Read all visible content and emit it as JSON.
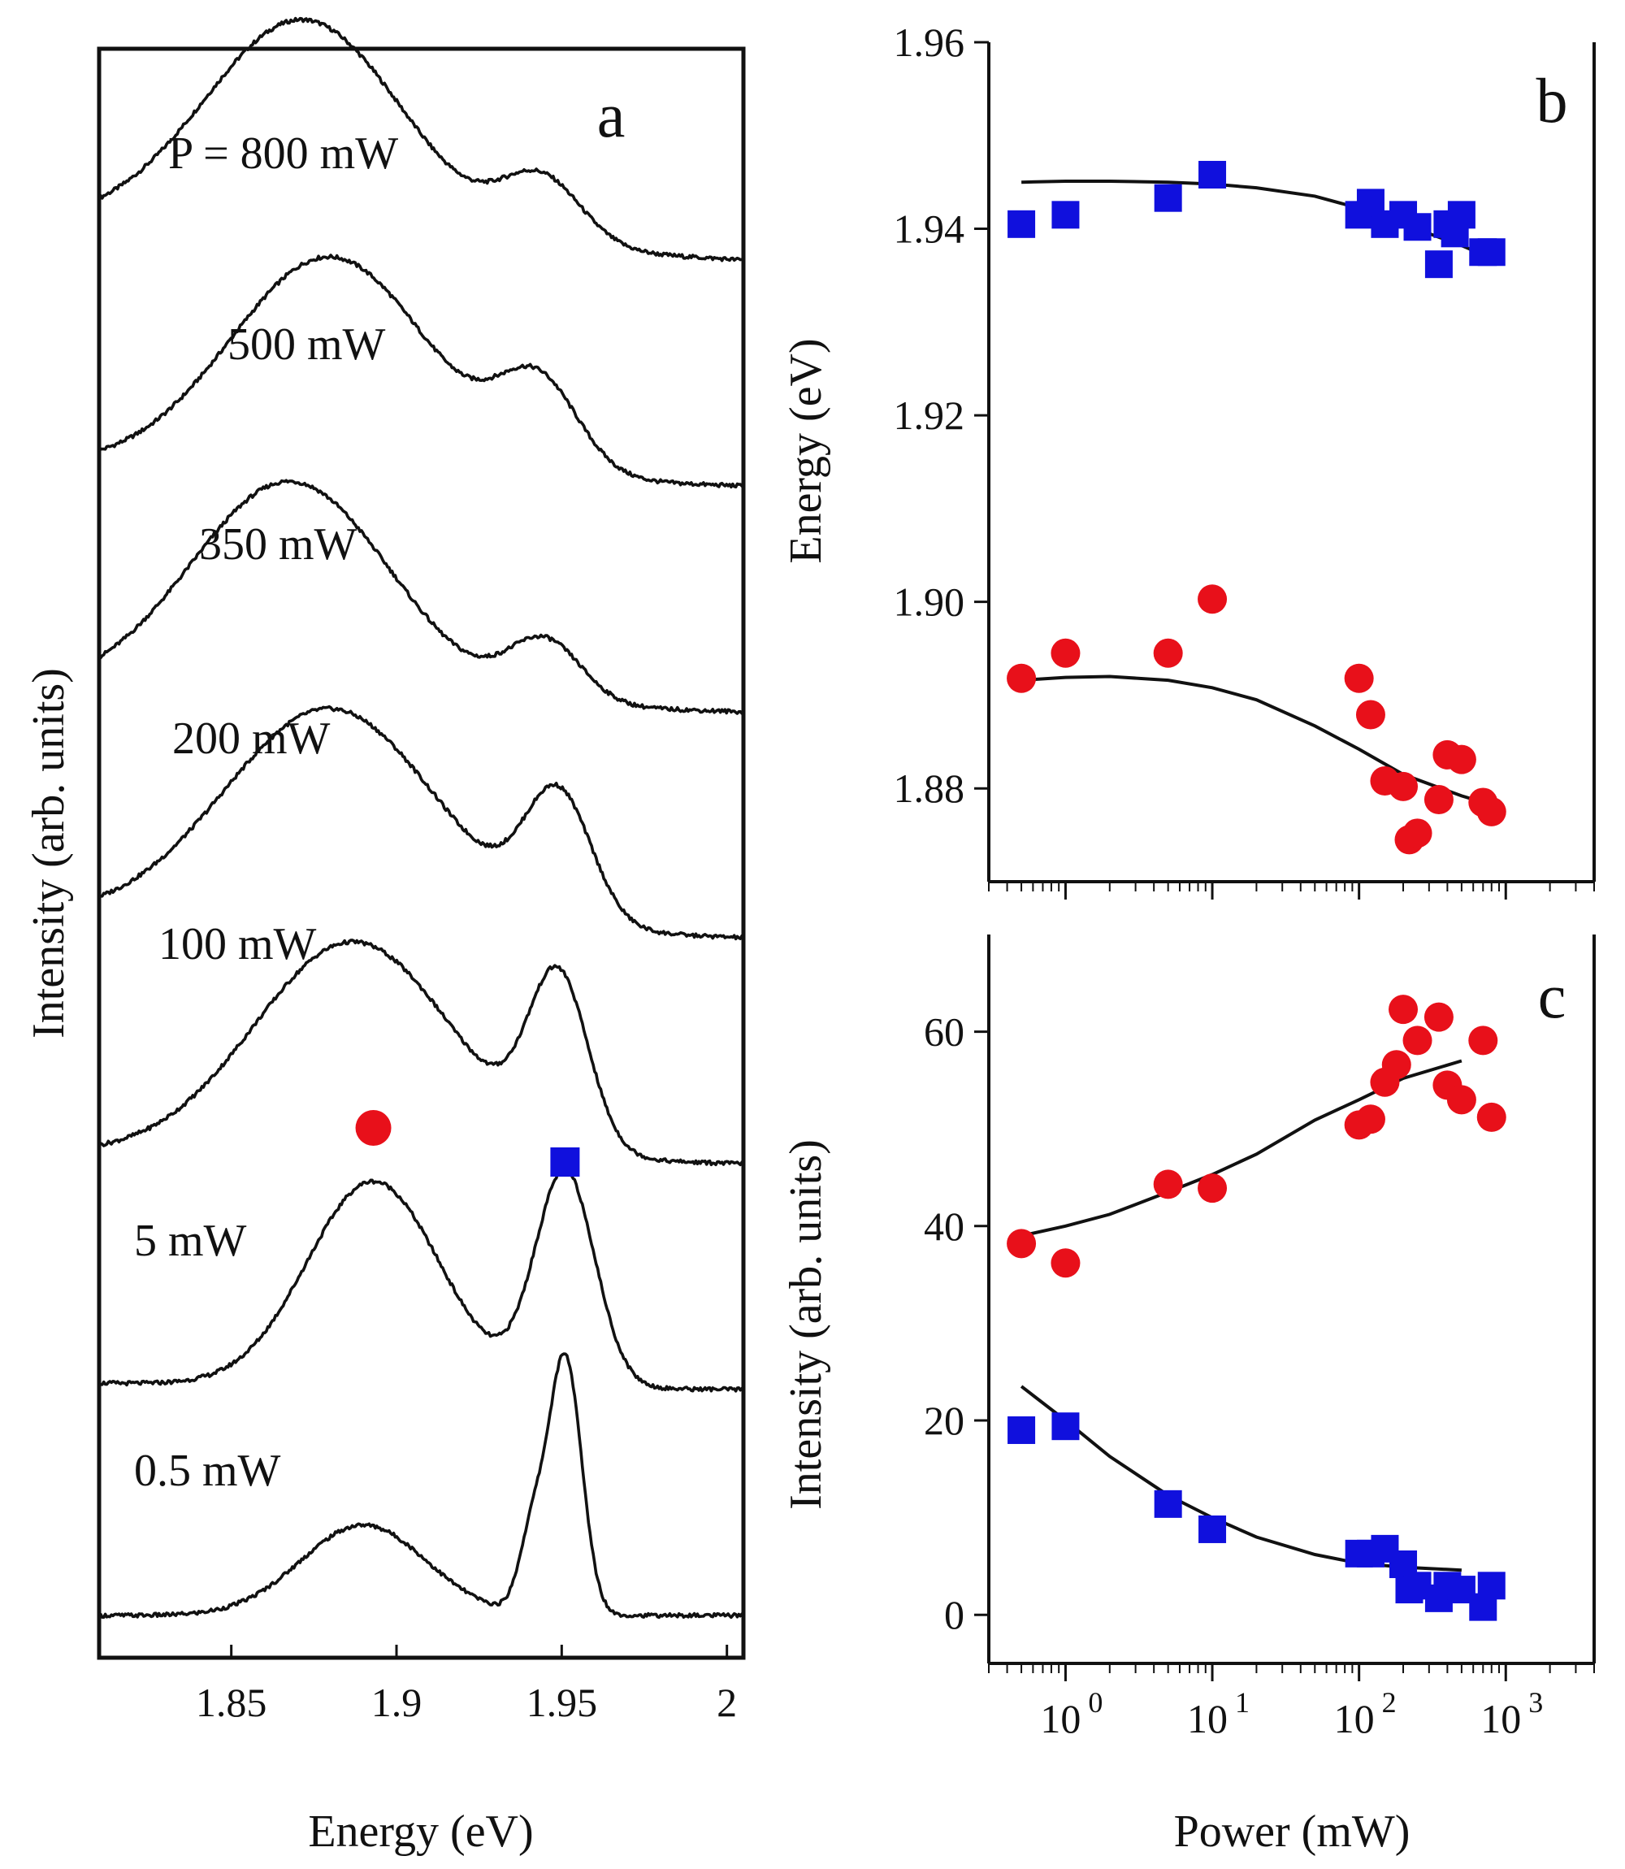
{
  "chart_data": [
    {
      "panel": "a",
      "type": "line",
      "title": "",
      "panel_label": "a",
      "xlabel": "Energy (eV)",
      "ylabel": "Intensity  (arb. units)",
      "xlim": [
        1.81,
        2.005
      ],
      "xticks": [
        1.85,
        1.9,
        1.95,
        2.0
      ],
      "xtick_labels": [
        "1.85",
        "1.9",
        "1.95",
        "2"
      ],
      "series": [
        {
          "name": "800 mW",
          "label": "P = 800 mW",
          "offset": 6.1,
          "peaks": [
            {
              "c": 1.872,
              "w": 0.03,
              "a": 1.0
            },
            {
              "c": 1.944,
              "w": 0.012,
              "a": 0.3
            }
          ],
          "tail": 0.17
        },
        {
          "name": "500 mW",
          "label": "500 mW",
          "offset": 5.05,
          "peaks": [
            {
              "c": 1.88,
              "w": 0.03,
              "a": 1.0
            },
            {
              "c": 1.943,
              "w": 0.012,
              "a": 0.4
            }
          ],
          "tail": 0.1
        },
        {
          "name": "350 mW",
          "label": "350 mW",
          "offset": 4.0,
          "peaks": [
            {
              "c": 1.868,
              "w": 0.03,
              "a": 1.0
            },
            {
              "c": 1.945,
              "w": 0.011,
              "a": 0.28
            }
          ],
          "tail": 0.1
        },
        {
          "name": "200 mW",
          "label": "200 mW",
          "offset": 3.0,
          "peaks": [
            {
              "c": 1.88,
              "w": 0.032,
              "a": 1.0
            },
            {
              "c": 1.949,
              "w": 0.01,
              "a": 0.58
            }
          ],
          "tail": 0.1
        },
        {
          "name": "100 mW",
          "label": "100 mW",
          "offset": 2.0,
          "peaks": [
            {
              "c": 1.887,
              "w": 0.03,
              "a": 1.0
            },
            {
              "c": 1.949,
              "w": 0.009,
              "a": 0.78
            }
          ],
          "tail": 0.05
        },
        {
          "name": "5 mW",
          "label": "5 mW",
          "offset": 1.0,
          "peaks": [
            {
              "c": 1.893,
              "w": 0.02,
              "a": 0.95
            },
            {
              "c": 1.951,
              "w": 0.009,
              "a": 1.0
            }
          ],
          "tail": 0.03
        },
        {
          "name": "0.5 mW",
          "label": "0.5 mW",
          "offset": 0.0,
          "peaks": [
            {
              "c": 1.89,
              "w": 0.019,
              "a": 0.42
            },
            {
              "c": 1.951,
              "w": 0.005,
              "a": 1.2
            },
            {
              "c": 1.941,
              "w": 0.004,
              "a": 0.35
            }
          ],
          "tail": 0.0
        }
      ],
      "markers": [
        {
          "shape": "circle",
          "color": "#e8101a",
          "x": 1.893
        },
        {
          "shape": "square",
          "color": "#1010dd",
          "x": 1.951
        }
      ]
    },
    {
      "panel": "b",
      "type": "scatter",
      "panel_label": "b",
      "xlabel": "Power (mW)",
      "ylabel": "Energy (eV)",
      "xscale": "log",
      "xlim": [
        0.3,
        4000
      ],
      "ylim": [
        1.87,
        1.96
      ],
      "yticks": [
        1.88,
        1.9,
        1.92,
        1.94,
        1.96
      ],
      "ytick_labels": [
        "1.88",
        "1.90",
        "1.92",
        "1.94",
        "1.96"
      ],
      "series": [
        {
          "name": "square",
          "color": "#1010dd",
          "marker": "square",
          "x": [
            0.5,
            1,
            5,
            10,
            100,
            120,
            150,
            200,
            250,
            350,
            400,
            450,
            500,
            700,
            800
          ],
          "y": [
            1.9405,
            1.9415,
            1.9433,
            1.9458,
            1.9415,
            1.9428,
            1.9405,
            1.9415,
            1.9402,
            1.9362,
            1.9405,
            1.9395,
            1.9415,
            1.9375,
            1.9375
          ]
        },
        {
          "name": "circle",
          "color": "#e8101a",
          "marker": "circle",
          "x": [
            0.5,
            1,
            5,
            10,
            100,
            120,
            150,
            200,
            220,
            250,
            350,
            400,
            500,
            700,
            800
          ],
          "y": [
            1.8918,
            1.8945,
            1.8945,
            1.9003,
            1.8918,
            1.8879,
            1.8808,
            1.8802,
            1.8745,
            1.8752,
            1.8788,
            1.8836,
            1.8831,
            1.8785,
            1.8775
          ]
        }
      ],
      "fits": [
        {
          "color": "#111111",
          "x": [
            0.5,
            1,
            2,
            5,
            10,
            20,
            50,
            100,
            200,
            500,
            900
          ],
          "y": [
            1.945,
            1.9451,
            1.9451,
            1.945,
            1.9448,
            1.9444,
            1.9435,
            1.9422,
            1.9405,
            1.9382,
            1.9365
          ]
        },
        {
          "color": "#111111",
          "x": [
            0.5,
            1,
            2,
            5,
            10,
            20,
            50,
            100,
            200,
            500,
            900
          ],
          "y": [
            1.8916,
            1.8919,
            1.892,
            1.8916,
            1.8908,
            1.8895,
            1.8867,
            1.8842,
            1.8815,
            1.8792,
            1.878
          ]
        }
      ]
    },
    {
      "panel": "c",
      "type": "scatter",
      "panel_label": "c",
      "xlabel": "Power (mW)",
      "ylabel": "Intensity (arb. units)",
      "xscale": "log",
      "xlim": [
        0.3,
        4000
      ],
      "ylim": [
        -5,
        70
      ],
      "yticks": [
        0,
        20,
        40,
        60
      ],
      "ytick_labels": [
        "0",
        "20",
        "40",
        "60"
      ],
      "xticks": [
        1,
        10,
        100,
        1000
      ],
      "xtick_labels": [
        {
          "base": "10",
          "exp": "0"
        },
        {
          "base": "10",
          "exp": "1"
        },
        {
          "base": "10",
          "exp": "2"
        },
        {
          "base": "10",
          "exp": "3"
        }
      ],
      "series": [
        {
          "name": "circle",
          "color": "#e8101a",
          "marker": "circle",
          "x": [
            0.5,
            1,
            5,
            10,
            100,
            120,
            150,
            180,
            200,
            250,
            350,
            400,
            500,
            700,
            800
          ],
          "y": [
            38.2,
            36.2,
            44.3,
            43.9,
            50.4,
            51.0,
            54.8,
            56.6,
            62.3,
            59.1,
            61.5,
            54.5,
            53.0,
            59.1,
            51.2
          ]
        },
        {
          "name": "square",
          "color": "#1010dd",
          "marker": "square",
          "x": [
            0.5,
            1,
            5,
            10,
            100,
            120,
            150,
            200,
            220,
            250,
            350,
            400,
            500,
            700,
            800
          ],
          "y": [
            19.0,
            19.4,
            11.4,
            8.8,
            6.3,
            6.3,
            6.8,
            5.2,
            2.6,
            3.0,
            1.7,
            3.0,
            2.6,
            0.8,
            3.0
          ]
        }
      ],
      "fits": [
        {
          "color": "#111111",
          "x": [
            0.5,
            1,
            2,
            5,
            10,
            20,
            50,
            100,
            200,
            500
          ],
          "y": [
            39.0,
            40.0,
            41.2,
            43.5,
            45.3,
            47.4,
            50.9,
            53.0,
            55.2,
            57.0
          ]
        },
        {
          "color": "#111111",
          "x": [
            0.5,
            1,
            2,
            5,
            10,
            20,
            50,
            100,
            200,
            500
          ],
          "y": [
            23.5,
            20.0,
            16.3,
            12.3,
            10.0,
            8.0,
            6.2,
            5.3,
            4.9,
            4.6
          ]
        }
      ]
    }
  ]
}
